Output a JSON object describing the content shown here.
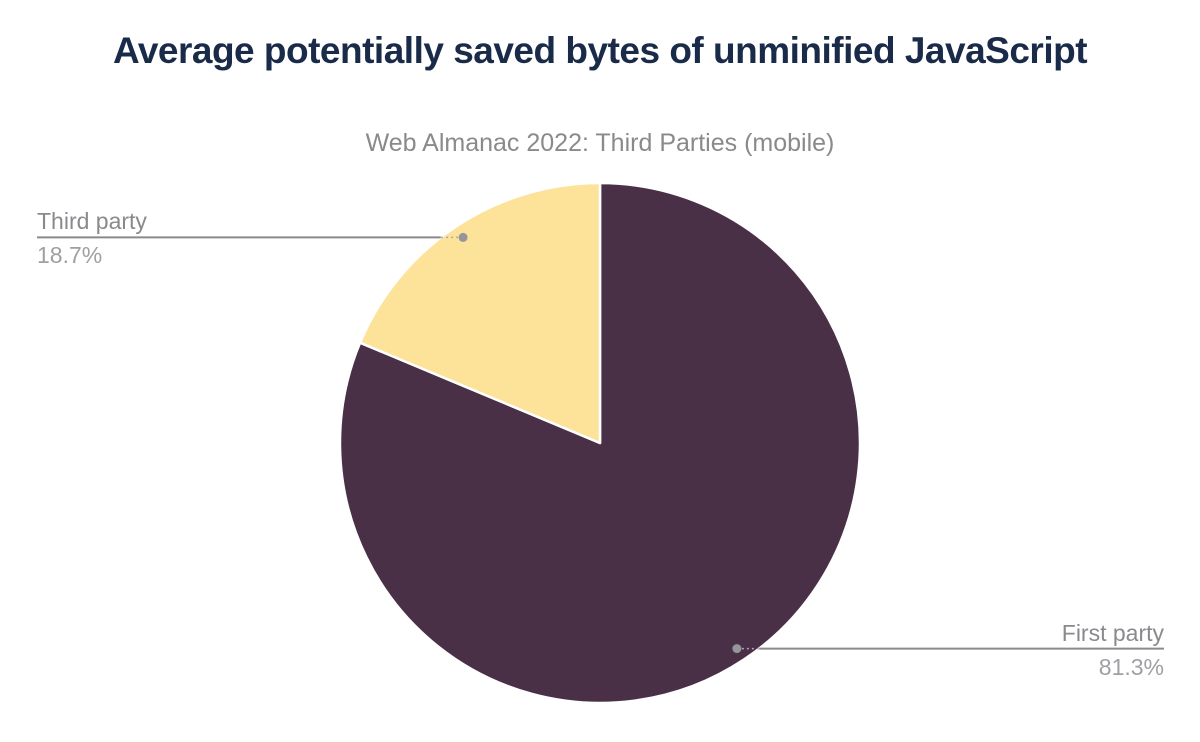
{
  "chart_data": {
    "type": "pie",
    "title": "Average potentially saved bytes of unminified JavaScript",
    "subtitle": "Web Almanac 2022: Third Parties (mobile)",
    "start_angle_deg": 0,
    "direction": "clockwise",
    "legend_position": "none",
    "data_label_style": "callout leader lines with name above and percent below",
    "slices": [
      {
        "label": "First party",
        "value": 81.3,
        "pct": "81.3%",
        "color": "#493047",
        "callout_side": "right"
      },
      {
        "label": "Third party",
        "value": 18.7,
        "pct": "18.7%",
        "color": "#FDE299",
        "callout_side": "left"
      }
    ]
  },
  "colors": {
    "background": "#FFFFFF",
    "title": "#1A2B49",
    "subtitle": "#8A8A8A",
    "label_name": "#8A8A8E",
    "label_value": "#9EA0A4",
    "connector": "#8A8A8A",
    "connector_dotted": "#A9A9AD",
    "callout_dot": "#96969A",
    "slice_border": "#FFFFFF"
  }
}
